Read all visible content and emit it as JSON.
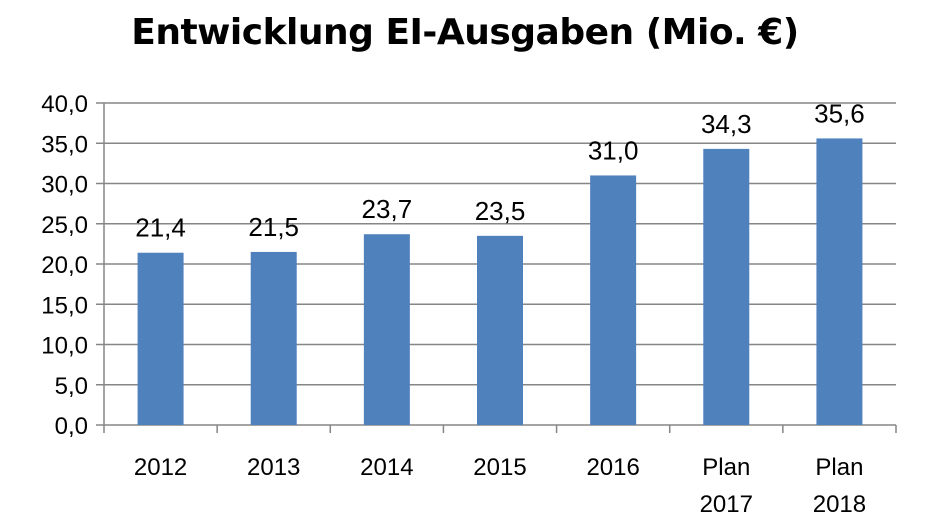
{
  "chart_data": {
    "type": "bar",
    "title": "Entwicklung EI-Ausgaben (Mio. €)",
    "categories": [
      [
        "2012"
      ],
      [
        "2013"
      ],
      [
        "2014"
      ],
      [
        "2015"
      ],
      [
        "2016"
      ],
      [
        "Plan",
        "2017"
      ],
      [
        "Plan",
        "2018"
      ]
    ],
    "values": [
      21.4,
      21.5,
      23.7,
      23.5,
      31.0,
      34.3,
      35.6
    ],
    "value_labels": [
      "21,4",
      "21,5",
      "23,7",
      "23,5",
      "31,0",
      "34,3",
      "35,6"
    ],
    "ylim": [
      0,
      40
    ],
    "yticks": [
      0,
      5,
      10,
      15,
      20,
      25,
      30,
      35,
      40
    ],
    "ytick_labels": [
      "0,0",
      "5,0",
      "10,0",
      "15,0",
      "20,0",
      "25,0",
      "30,0",
      "35,0",
      "40,0"
    ],
    "grid": true,
    "bar_color": "#4F81BD",
    "grid_color": "#868686"
  }
}
